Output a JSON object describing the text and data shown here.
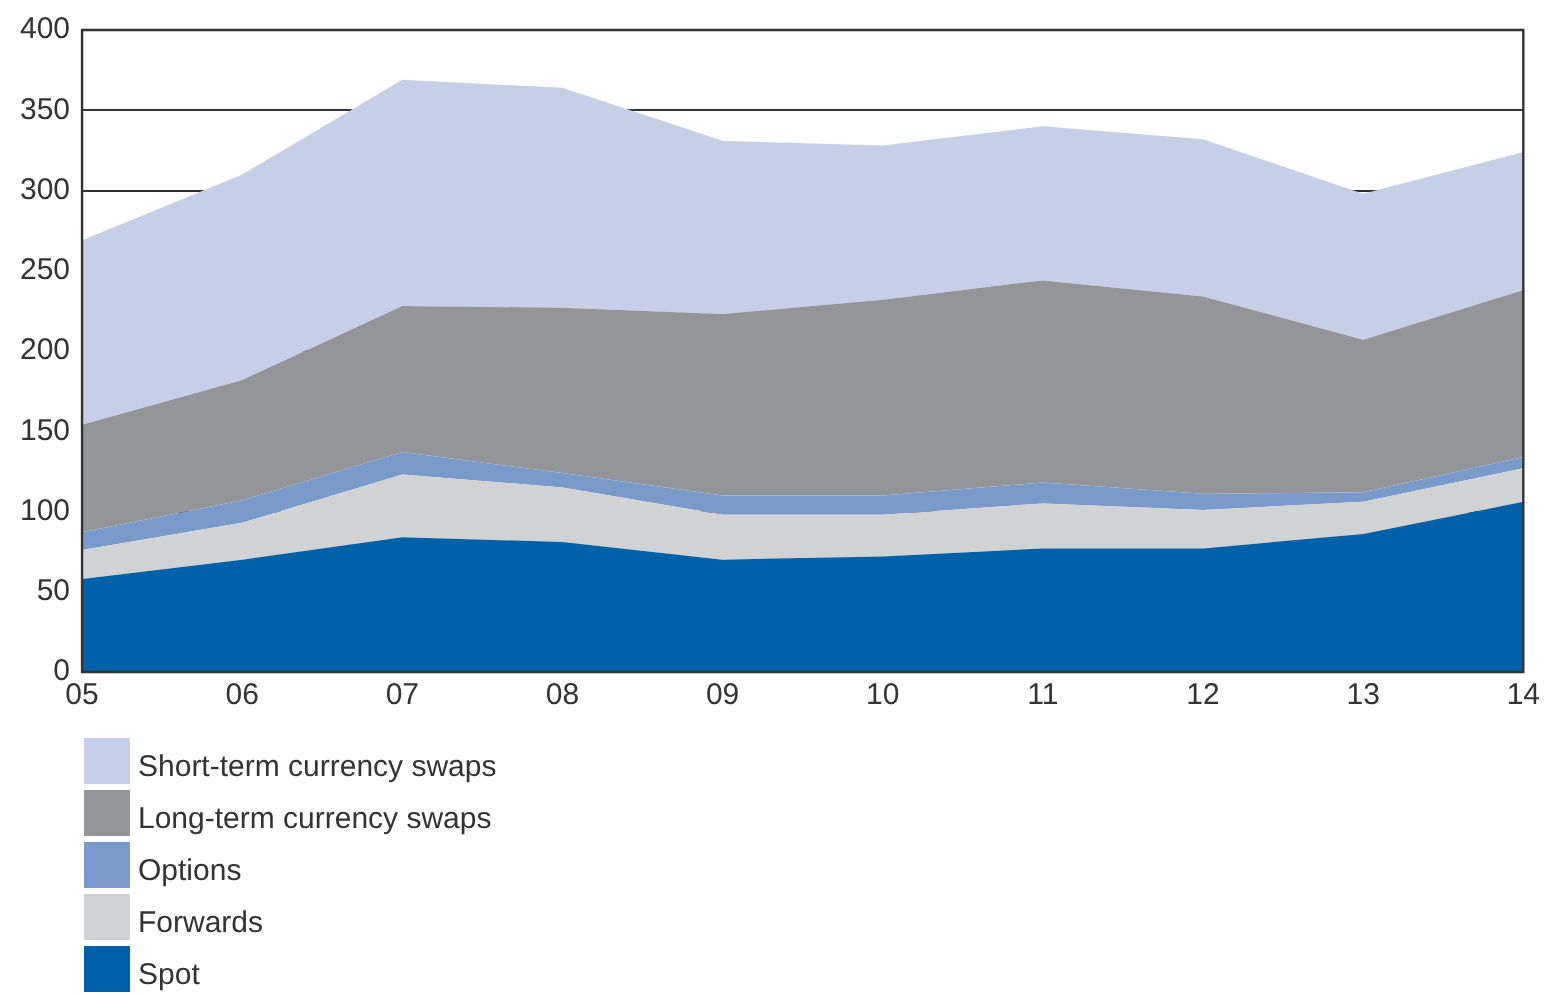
{
  "chart_data": {
    "type": "area",
    "stacked": true,
    "categories": [
      "05",
      "06",
      "07",
      "08",
      "09",
      "10",
      "11",
      "12",
      "13",
      "14"
    ],
    "series": [
      {
        "name": "Spot",
        "color": "#0060a8",
        "values": [
          58,
          70,
          84,
          81,
          70,
          72,
          77,
          77,
          86,
          106
        ]
      },
      {
        "name": "Forwards",
        "color": "#d0d2d4",
        "values": [
          18,
          23,
          39,
          34,
          28,
          26,
          28,
          24,
          20,
          21
        ]
      },
      {
        "name": "Options",
        "color": "#7a9acb",
        "values": [
          11,
          14,
          14,
          9,
          12,
          12,
          13,
          10,
          6,
          7
        ]
      },
      {
        "name": "Long-term currency swaps",
        "color": "#939598",
        "values": [
          67,
          75,
          91,
          103,
          113,
          122,
          126,
          123,
          95,
          104
        ]
      },
      {
        "name": "Short-term currency swaps",
        "color": "#c5cfe7",
        "values": [
          115,
          128,
          141,
          137,
          108,
          96,
          96,
          98,
          91,
          86
        ]
      }
    ],
    "ylim": [
      0,
      400
    ],
    "yticks": [
      0,
      50,
      100,
      150,
      200,
      250,
      300,
      350,
      400
    ],
    "grid": "y",
    "legend": "bottom left"
  }
}
